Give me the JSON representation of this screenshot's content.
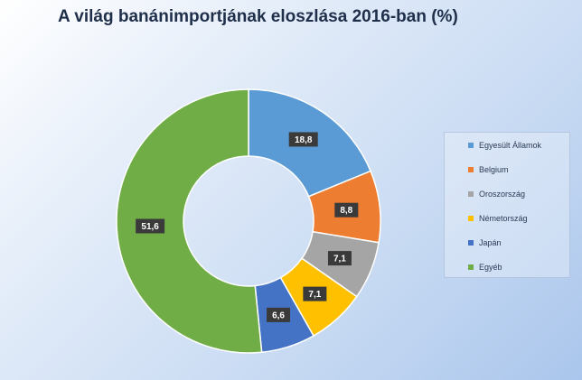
{
  "chart_data": {
    "type": "pie",
    "title": "A világ banánimportjának eloszlása 2016-ban (%)",
    "categories": [
      "Egyesült Államok",
      "Belgium",
      "Oroszország",
      "Németország",
      "Japán",
      "Egyéb"
    ],
    "values": [
      18.8,
      8.8,
      7.1,
      7.1,
      6.6,
      51.6
    ],
    "value_labels": [
      "18,8",
      "8,8",
      "7,1",
      "7,1",
      "6,6",
      "51,6"
    ],
    "colors": [
      "#5b9bd5",
      "#ed7d31",
      "#a5a5a5",
      "#ffc000",
      "#4472c4",
      "#70ad47"
    ],
    "donut": true,
    "legend_position": "right"
  }
}
